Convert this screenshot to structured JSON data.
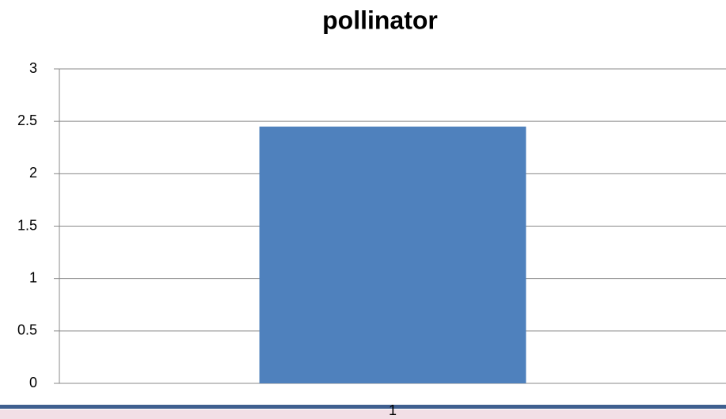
{
  "chart_data": {
    "type": "bar",
    "title": "pollinator",
    "categories": [
      "1"
    ],
    "values": [
      2.45
    ],
    "color": "#4f81bd",
    "ylim": [
      0,
      3
    ],
    "yticks": [
      0,
      0.5,
      1,
      1.5,
      2,
      2.5,
      3
    ],
    "grid": true
  }
}
